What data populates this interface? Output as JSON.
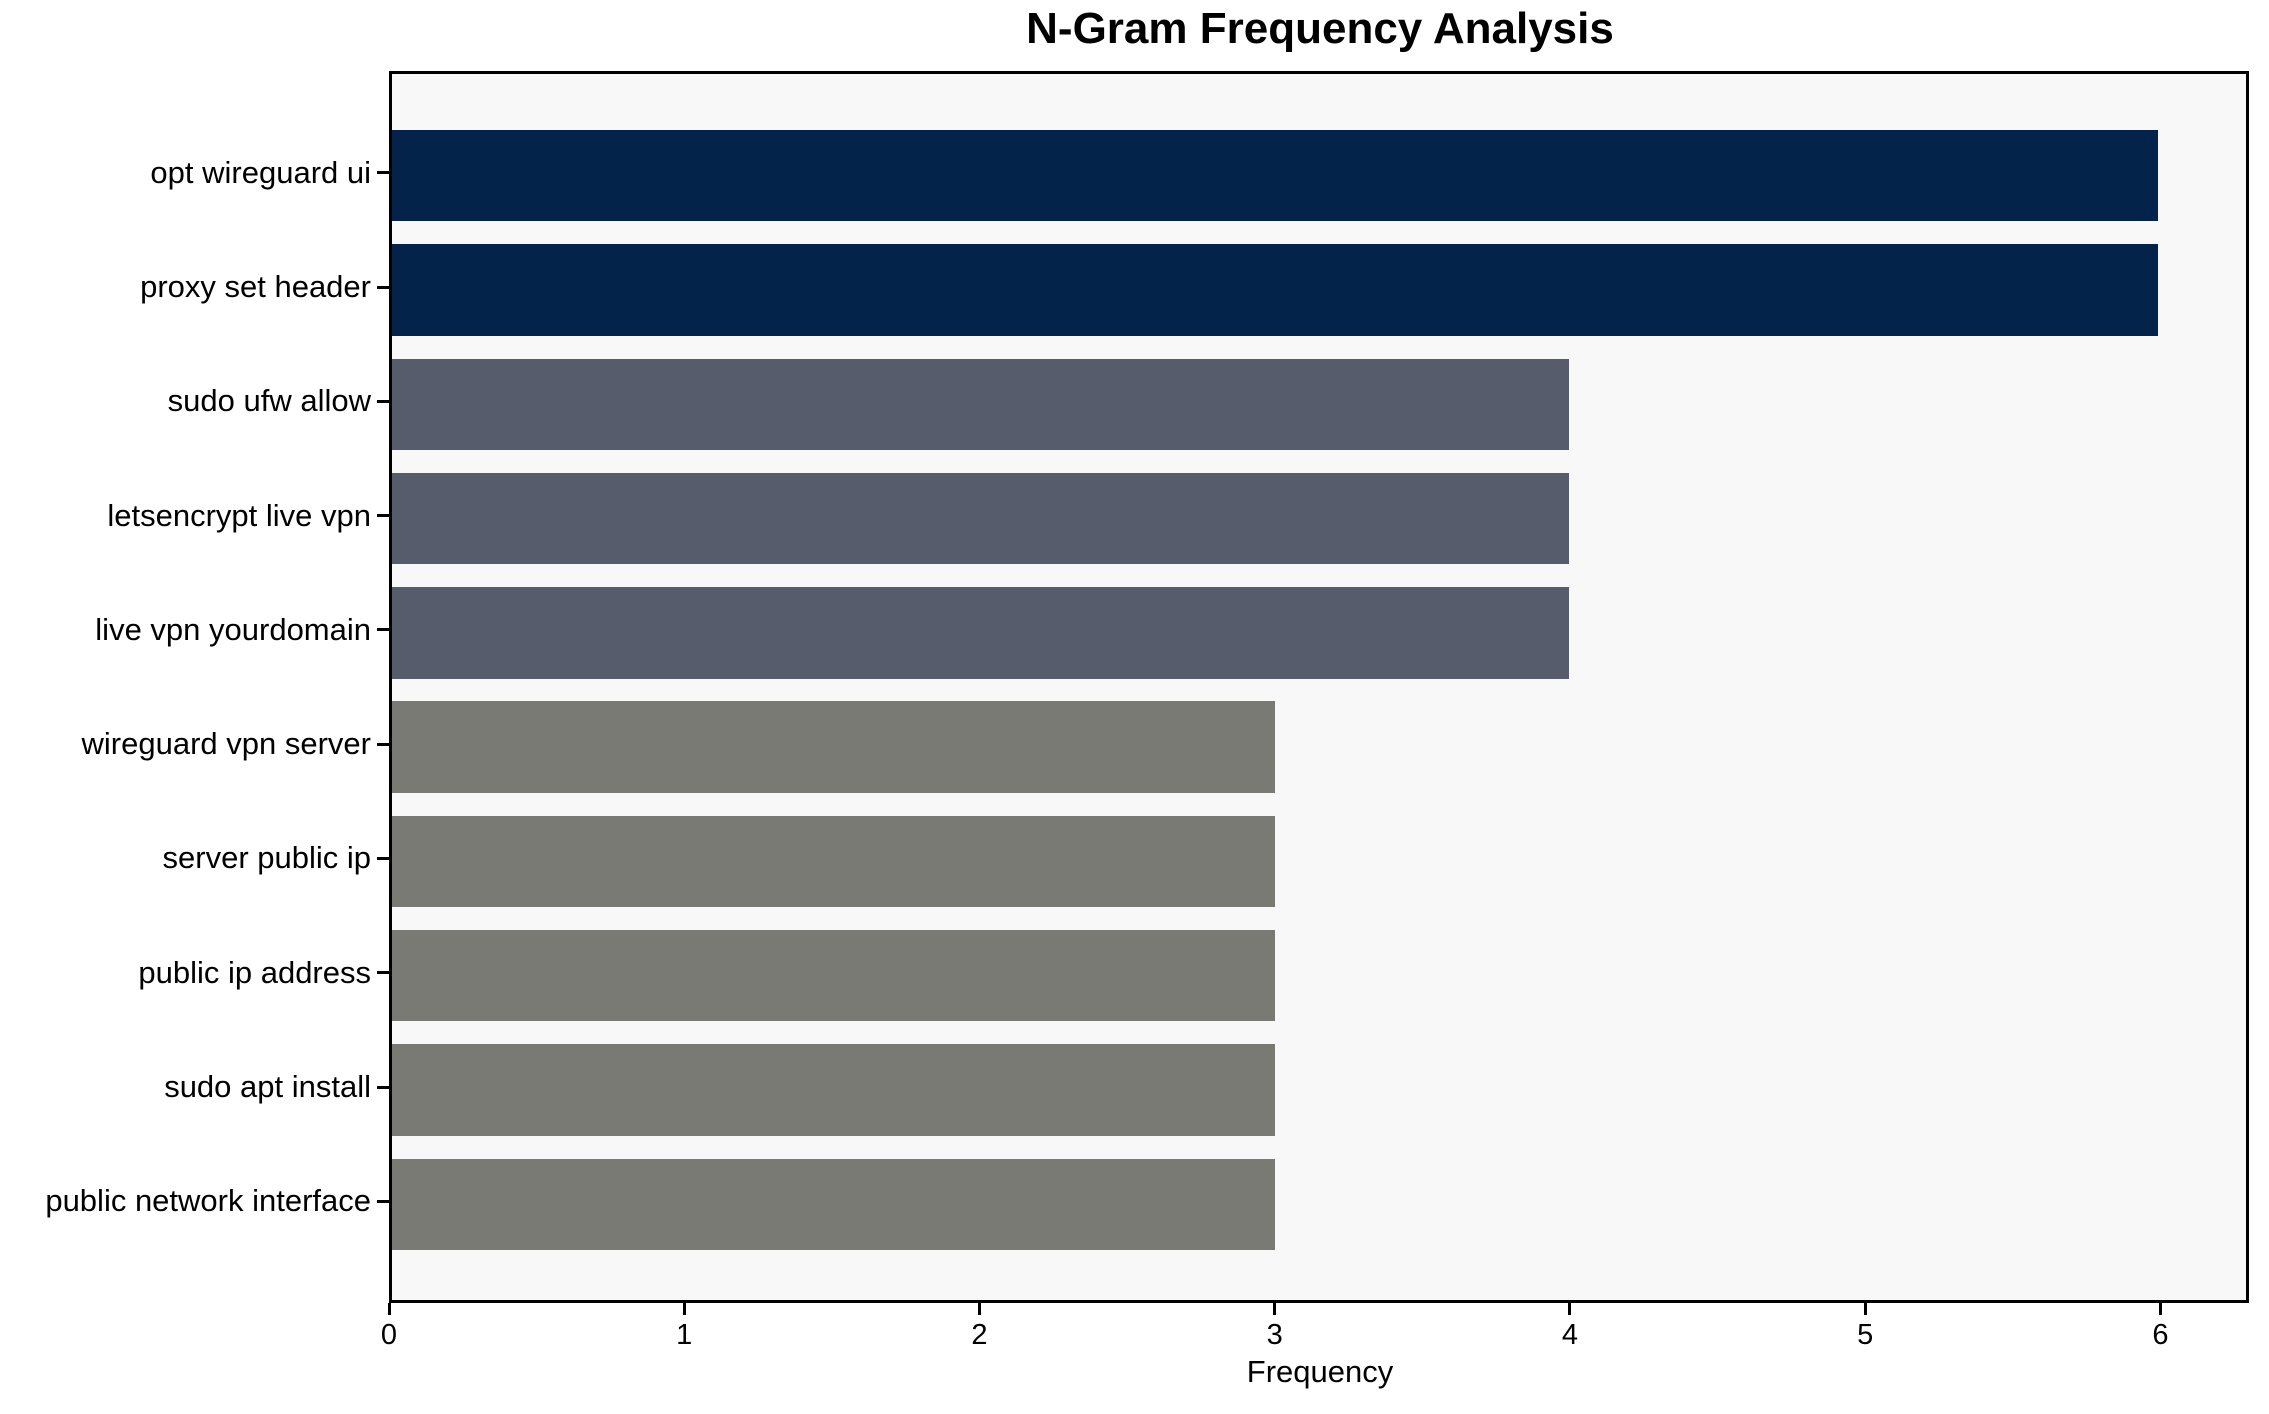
{
  "chart_data": {
    "type": "bar",
    "orientation": "horizontal",
    "title": "N-Gram Frequency Analysis",
    "xlabel": "Frequency",
    "ylabel": "",
    "categories": [
      "opt wireguard ui",
      "proxy set header",
      "sudo ufw allow",
      "letsencrypt live vpn",
      "live vpn yourdomain",
      "wireguard vpn server",
      "server public ip",
      "public ip address",
      "sudo apt install",
      "public network interface"
    ],
    "values": [
      6,
      6,
      4,
      4,
      4,
      3,
      3,
      3,
      3,
      3
    ],
    "bar_colors": [
      "#03234B",
      "#03234B",
      "#565C6C",
      "#565C6C",
      "#565C6C",
      "#7A7A75",
      "#7A7A75",
      "#7A7A75",
      "#7A7A75",
      "#7A7A75"
    ],
    "xlim": [
      0,
      6.3
    ],
    "x_ticks": [
      0,
      1,
      2,
      3,
      4,
      5,
      6
    ],
    "grid": false,
    "legend": null,
    "bar_height_fraction": 0.8,
    "plot_bg": "#F8F8F9",
    "figure_bg": "#FFFFFF",
    "axis_color": "#000000"
  }
}
